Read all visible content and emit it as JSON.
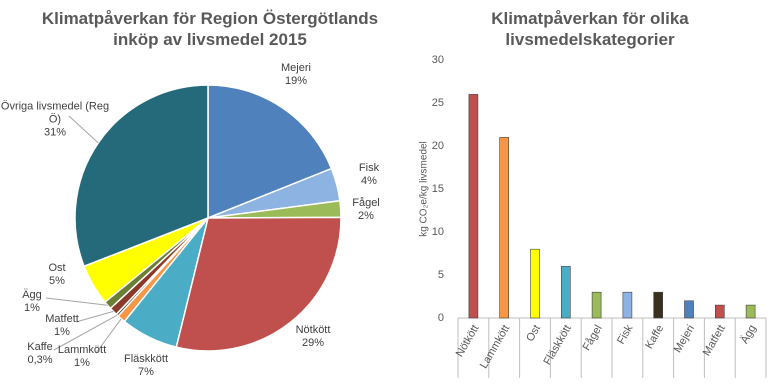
{
  "chart_data": [
    {
      "type": "pie",
      "title": "Klimatpåverkan för Region Östergötlands inköp av livsmedel 2015",
      "categories": [
        "Mejeri",
        "Fisk",
        "Fågel",
        "Nötkött",
        "Fläskkött",
        "Lammkött",
        "Kaffe",
        "Matfett",
        "Ägg",
        "Ost",
        "Övriga livsmedel (Reg Ö)"
      ],
      "values": [
        19,
        4,
        2,
        29,
        7,
        1,
        0.3,
        1,
        1,
        5,
        31
      ],
      "value_labels": [
        "19%",
        "4%",
        "2%",
        "29%",
        "7%",
        "1%",
        "0,3%",
        "1%",
        "1%",
        "5%",
        "31%"
      ],
      "colors": [
        "#4f81bd",
        "#8db3e2",
        "#9bbb59",
        "#c0504d",
        "#4bacc6",
        "#f79646",
        "#3b2f1e",
        "#8b3a2a",
        "#6b7f34",
        "#ffff00",
        "#256a7a"
      ]
    },
    {
      "type": "bar",
      "title": "Klimatpåverkan för olika livsmedelskategorier",
      "y_label": "kg CO₂e/kg livsmedel",
      "categories": [
        "Nötkött",
        "Lammkött",
        "Ost",
        "Fläskkött",
        "Fågel",
        "Fisk",
        "Kaffe",
        "Mejeri",
        "Matfett",
        "Ägg"
      ],
      "values": [
        26,
        21,
        8,
        6,
        3,
        3,
        3,
        2,
        1.5,
        1.5
      ],
      "colors": [
        "#c0504d",
        "#f79646",
        "#ffff00",
        "#4bacc6",
        "#9bbb59",
        "#8db3e2",
        "#3b2f1e",
        "#4f81bd",
        "#c0504d",
        "#9bbb59"
      ],
      "ylim": [
        0,
        30
      ],
      "yticks": [
        0,
        5,
        10,
        15,
        20,
        25,
        30
      ],
      "grid": false
    }
  ]
}
